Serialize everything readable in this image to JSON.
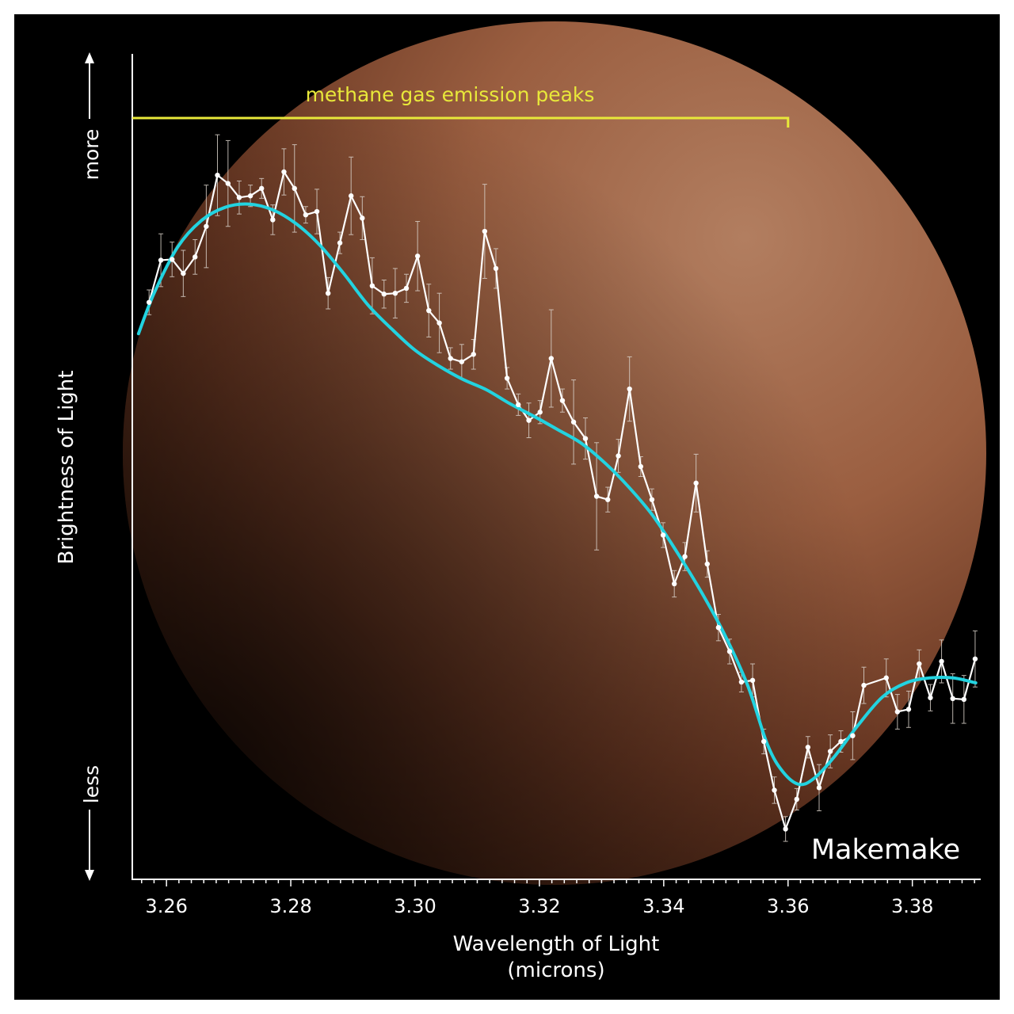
{
  "chart_data": {
    "type": "line",
    "title": "",
    "annotation": "methane gas emission peaks",
    "annotation_range": [
      3.2545,
      3.36
    ],
    "object_label": "Makemake",
    "xlabel": "Wavelength of Light",
    "xlabel_units": "(microns)",
    "ylabel": "Brightness of Light",
    "y_more_label": "more",
    "y_less_label": "less",
    "xlim": [
      3.2545,
      3.391
    ],
    "ylim": [
      0,
      100
    ],
    "x_ticks": [
      "3.26",
      "3.28",
      "3.30",
      "3.32",
      "3.34",
      "3.36",
      "3.38"
    ],
    "grid": false,
    "colors": {
      "observed": "#ffffff",
      "model": "#22d3e0",
      "annotation": "#e8e83a",
      "background": "#000000"
    },
    "series": [
      {
        "style": "observed points with error bars",
        "x": [
          3.2572,
          3.2591,
          3.2609,
          3.2627,
          3.2646,
          3.2664,
          3.2682,
          3.2699,
          3.2717,
          3.2735,
          3.2753,
          3.2771,
          3.2789,
          3.2806,
          3.2824,
          3.2842,
          3.286,
          3.2879,
          3.2897,
          3.2915,
          3.2931,
          3.295,
          3.2968,
          3.2986,
          3.3004,
          3.3022,
          3.3039,
          3.3057,
          3.3075,
          3.3094,
          3.3112,
          3.313,
          3.3148,
          3.3166,
          3.3183,
          3.3201,
          3.3219,
          3.3237,
          3.3255,
          3.3274,
          3.3292,
          3.331,
          3.3327,
          3.3345,
          3.3363,
          3.3381,
          3.3399,
          3.3417,
          3.3434,
          3.3452,
          3.347,
          3.3488,
          3.3506,
          3.3525,
          3.3543,
          3.3561,
          3.3578,
          3.3596,
          3.3614,
          3.3632,
          3.365,
          3.3668,
          3.3685,
          3.3704,
          3.3722,
          3.3758,
          3.3776,
          3.3794,
          3.3811,
          3.3829,
          3.3847,
          3.3865,
          3.3883,
          3.3901
        ],
        "y": [
          69.9,
          75.0,
          75.1,
          73.4,
          75.4,
          79.1,
          85.3,
          84.3,
          82.6,
          82.8,
          83.7,
          79.9,
          85.7,
          83.7,
          80.5,
          80.9,
          71.0,
          77.1,
          82.8,
          80.1,
          71.9,
          70.9,
          71.0,
          71.6,
          75.5,
          68.9,
          67.4,
          63.1,
          62.7,
          63.6,
          78.5,
          74.0,
          60.7,
          57.5,
          55.6,
          56.6,
          63.1,
          58.0,
          55.4,
          53.4,
          46.4,
          46.0,
          51.3,
          59.4,
          50.0,
          46.0,
          41.7,
          35.8,
          39.1,
          48.0,
          38.2,
          30.5,
          27.6,
          23.9,
          24.1,
          16.7,
          10.8,
          6.1,
          9.7,
          16.0,
          11.1,
          15.5,
          16.7,
          17.4,
          23.5,
          24.4,
          20.3,
          20.6,
          26.1,
          22.0,
          26.4,
          21.9,
          21.8,
          26.7
        ],
        "error": [
          1.5,
          3.2,
          2.1,
          2.8,
          2.1,
          5.0,
          4.9,
          5.2,
          2.0,
          1.3,
          1.2,
          1.8,
          2.8,
          5.3,
          1.0,
          2.7,
          1.9,
          1.3,
          4.7,
          2.6,
          3.4,
          1.7,
          3.0,
          1.7,
          4.2,
          3.2,
          3.6,
          1.3,
          2.1,
          1.8,
          5.7,
          2.4,
          1.3,
          1.3,
          2.1,
          1.4,
          5.9,
          1.4,
          5.1,
          2.5,
          6.5,
          1.5,
          2.0,
          3.9,
          1.2,
          1.3,
          1.5,
          1.6,
          1.7,
          3.5,
          1.6,
          1.6,
          1.5,
          1.2,
          2.0,
          1.5,
          1.6,
          1.5,
          1.3,
          1.3,
          2.8,
          2.0,
          1.3,
          2.9,
          2.2,
          2.3,
          2.1,
          2.2,
          1.7,
          1.6,
          2.6,
          3.0,
          2.9,
          3.4
        ]
      },
      {
        "style": "model fit",
        "x": [
          3.2555,
          3.258,
          3.2618,
          3.2656,
          3.2694,
          3.2732,
          3.2771,
          3.2809,
          3.2847,
          3.2885,
          3.2924,
          3.2962,
          3.3,
          3.3038,
          3.3076,
          3.3115,
          3.3153,
          3.3191,
          3.3229,
          3.3268,
          3.3306,
          3.3344,
          3.3382,
          3.342,
          3.3459,
          3.3497,
          3.3535,
          3.3567,
          3.3592,
          3.3618,
          3.3643,
          3.3675,
          3.3713,
          3.3752,
          3.379,
          3.3828,
          3.3866,
          3.3902
        ],
        "y": [
          66.1,
          71.0,
          76.6,
          79.8,
          81.4,
          81.8,
          81.1,
          79.4,
          76.8,
          73.4,
          69.6,
          66.7,
          64.1,
          62.2,
          60.6,
          59.3,
          57.6,
          56.1,
          54.5,
          52.8,
          50.4,
          47.5,
          44.1,
          39.8,
          35.0,
          29.8,
          23.5,
          16.3,
          13.0,
          11.5,
          12.3,
          14.9,
          18.7,
          22.1,
          23.8,
          24.4,
          24.4,
          23.8
        ]
      }
    ]
  }
}
